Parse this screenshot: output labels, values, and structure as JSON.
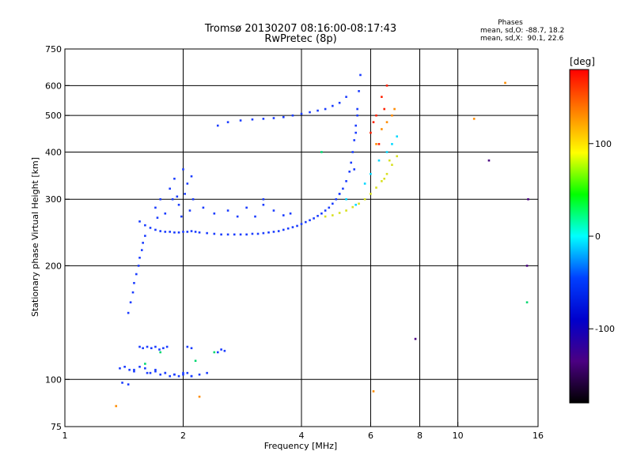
{
  "chart_data": {
    "type": "scatter",
    "title_line1": "Tromsø 20130207 08:16:00-08:17:43",
    "title_line2": "RwPretec (8p)",
    "xlabel": "Frequency [MHz]",
    "ylabel": "Stationary phase Virtual Height [km]",
    "x_scale": "log",
    "y_scale": "log",
    "xlim": [
      1,
      16
    ],
    "ylim": [
      75,
      750
    ],
    "x_ticks": [
      1,
      2,
      4,
      6,
      8,
      10,
      16
    ],
    "y_ticks": [
      75,
      100,
      200,
      300,
      400,
      500,
      600,
      750
    ],
    "x_gridlines": [
      2,
      4,
      6,
      8,
      10
    ],
    "y_gridlines": [
      100,
      200,
      300,
      400,
      500,
      600
    ],
    "grid": true,
    "stats": {
      "heading": "Phases",
      "line_o": "mean, sd,O: -88.7, 18.2",
      "line_x": "mean, sd,X:  90.1, 22.6"
    },
    "colorbar": {
      "label": "[deg]",
      "range": [
        -180,
        180
      ],
      "ticks": [
        100,
        0,
        -100
      ],
      "colors": [
        "#ff0000",
        "#ff8000",
        "#ffff00",
        "#00ff00",
        "#00ffff",
        "#0040ff",
        "#0000cc",
        "#4b0082",
        "#000000"
      ]
    },
    "series": [
      {
        "color": "#1a3cff",
        "x": [
          1.38,
          1.42,
          1.46,
          1.5,
          1.55,
          1.6,
          1.65,
          1.7,
          1.75,
          1.8,
          1.85,
          1.9,
          1.95,
          2.0,
          2.05,
          2.1,
          1.4,
          1.45,
          1.5,
          1.62,
          1.7,
          1.8,
          1.9,
          2.0,
          2.1,
          2.2,
          2.3
        ],
        "y": [
          107,
          108,
          106,
          105,
          108,
          107,
          104,
          106,
          103,
          104,
          102,
          103,
          102,
          103,
          104,
          102,
          98,
          97,
          106,
          104,
          105,
          104,
          103,
          104,
          102,
          103,
          104
        ]
      },
      {
        "color": "#1a3cff",
        "x": [
          1.55,
          1.58,
          1.62,
          1.66,
          1.7,
          1.74,
          1.78,
          1.82,
          2.05,
          2.1,
          2.45,
          2.5,
          2.55
        ],
        "y": [
          122,
          121,
          122,
          121,
          122,
          120,
          121,
          122,
          122,
          121,
          118,
          120,
          119
        ]
      },
      {
        "color": "#1a3cff",
        "x": [
          1.45,
          1.47,
          1.49,
          1.5,
          1.52,
          1.54,
          1.55,
          1.57,
          1.58,
          1.6
        ],
        "y": [
          150,
          160,
          170,
          180,
          190,
          200,
          210,
          220,
          230,
          240
        ]
      },
      {
        "color": "#1a3cff",
        "x": [
          1.55,
          1.6,
          1.65,
          1.7,
          1.75,
          1.8,
          1.85,
          1.9,
          1.95,
          2.0,
          2.05,
          2.1,
          2.15,
          2.2,
          2.3,
          2.4,
          2.5,
          2.6,
          2.7,
          2.8,
          2.9,
          3.0,
          3.1,
          3.2,
          3.3,
          3.4,
          3.5,
          3.6,
          3.7,
          3.8,
          3.9,
          4.0,
          4.1,
          4.2,
          4.3,
          4.4,
          4.5,
          4.6,
          4.7,
          4.8,
          4.9,
          5.0
        ],
        "y": [
          262,
          256,
          252,
          249,
          247,
          246,
          246,
          245,
          245,
          246,
          246,
          247,
          246,
          245,
          244,
          243,
          242,
          242,
          242,
          242,
          242,
          243,
          243,
          244,
          245,
          246,
          247,
          249,
          251,
          253,
          255,
          258,
          261,
          264,
          267,
          271,
          275,
          280,
          285,
          292,
          300,
          310
        ]
      },
      {
        "color": "#1a3cff",
        "x": [
          1.7,
          1.75,
          1.8,
          1.85,
          1.9,
          1.95,
          2.0,
          2.02,
          2.05,
          1.98,
          1.93,
          2.08,
          2.1,
          1.72,
          1.88,
          2.12,
          2.25,
          2.4,
          2.6,
          2.75,
          2.9,
          3.05,
          3.2,
          3.4,
          3.6,
          3.75,
          3.2
        ],
        "y": [
          285,
          300,
          275,
          320,
          340,
          290,
          360,
          310,
          330,
          270,
          305,
          280,
          345,
          268,
          300,
          300,
          285,
          275,
          280,
          270,
          285,
          270,
          290,
          280,
          272,
          275,
          300
        ]
      },
      {
        "color": "#1a3cff",
        "x": [
          2.45,
          2.6,
          2.8,
          3.0,
          3.2,
          3.4,
          3.6,
          3.8,
          4.0,
          4.2,
          4.4,
          4.6,
          4.8,
          5.0,
          5.2
        ],
        "y": [
          470,
          480,
          485,
          488,
          490,
          492,
          495,
          500,
          505,
          510,
          515,
          520,
          530,
          540,
          560
        ]
      },
      {
        "color": "#1a3cff",
        "x": [
          5.0,
          5.1,
          5.2,
          5.3,
          5.35,
          5.4,
          5.45,
          5.5,
          5.55,
          5.6,
          5.65,
          5.55,
          5.5,
          5.45
        ],
        "y": [
          310,
          320,
          335,
          355,
          375,
          400,
          430,
          470,
          520,
          580,
          640,
          500,
          450,
          360
        ]
      },
      {
        "color": "#d8e020",
        "x": [
          4.6,
          4.8,
          5.0,
          5.2,
          5.4,
          5.6,
          5.8,
          6.0,
          6.2,
          6.4,
          6.6,
          6.8,
          7.0,
          6.5,
          6.7
        ],
        "y": [
          270,
          272,
          276,
          280,
          286,
          292,
          300,
          310,
          322,
          335,
          350,
          370,
          390,
          340,
          380
        ]
      },
      {
        "color": "#00d8ff",
        "x": [
          5.2,
          5.5,
          5.8,
          6.0,
          6.3,
          6.6,
          6.8,
          7.0
        ],
        "y": [
          300,
          290,
          330,
          350,
          380,
          400,
          420,
          440
        ]
      },
      {
        "color": "#ff2000",
        "x": [
          6.0,
          6.2,
          6.4,
          6.6,
          6.5,
          6.1,
          6.3
        ],
        "y": [
          450,
          500,
          560,
          600,
          520,
          480,
          420
        ]
      },
      {
        "color": "#ff8c00",
        "x": [
          6.2,
          6.4,
          6.6,
          6.8,
          6.9,
          1.35,
          2.2,
          6.1,
          13.2,
          11.0
        ],
        "y": [
          420,
          460,
          480,
          500,
          520,
          85,
          90,
          93,
          610,
          490
        ]
      },
      {
        "color": "#00d870",
        "x": [
          1.6,
          1.75,
          2.15,
          2.4,
          15.0,
          4.5
        ],
        "y": [
          110,
          118,
          112,
          118,
          160,
          400
        ]
      },
      {
        "color": "#4b0082",
        "x": [
          12.0,
          15.0,
          15.1,
          7.8
        ],
        "y": [
          380,
          200,
          300,
          128
        ]
      }
    ]
  }
}
